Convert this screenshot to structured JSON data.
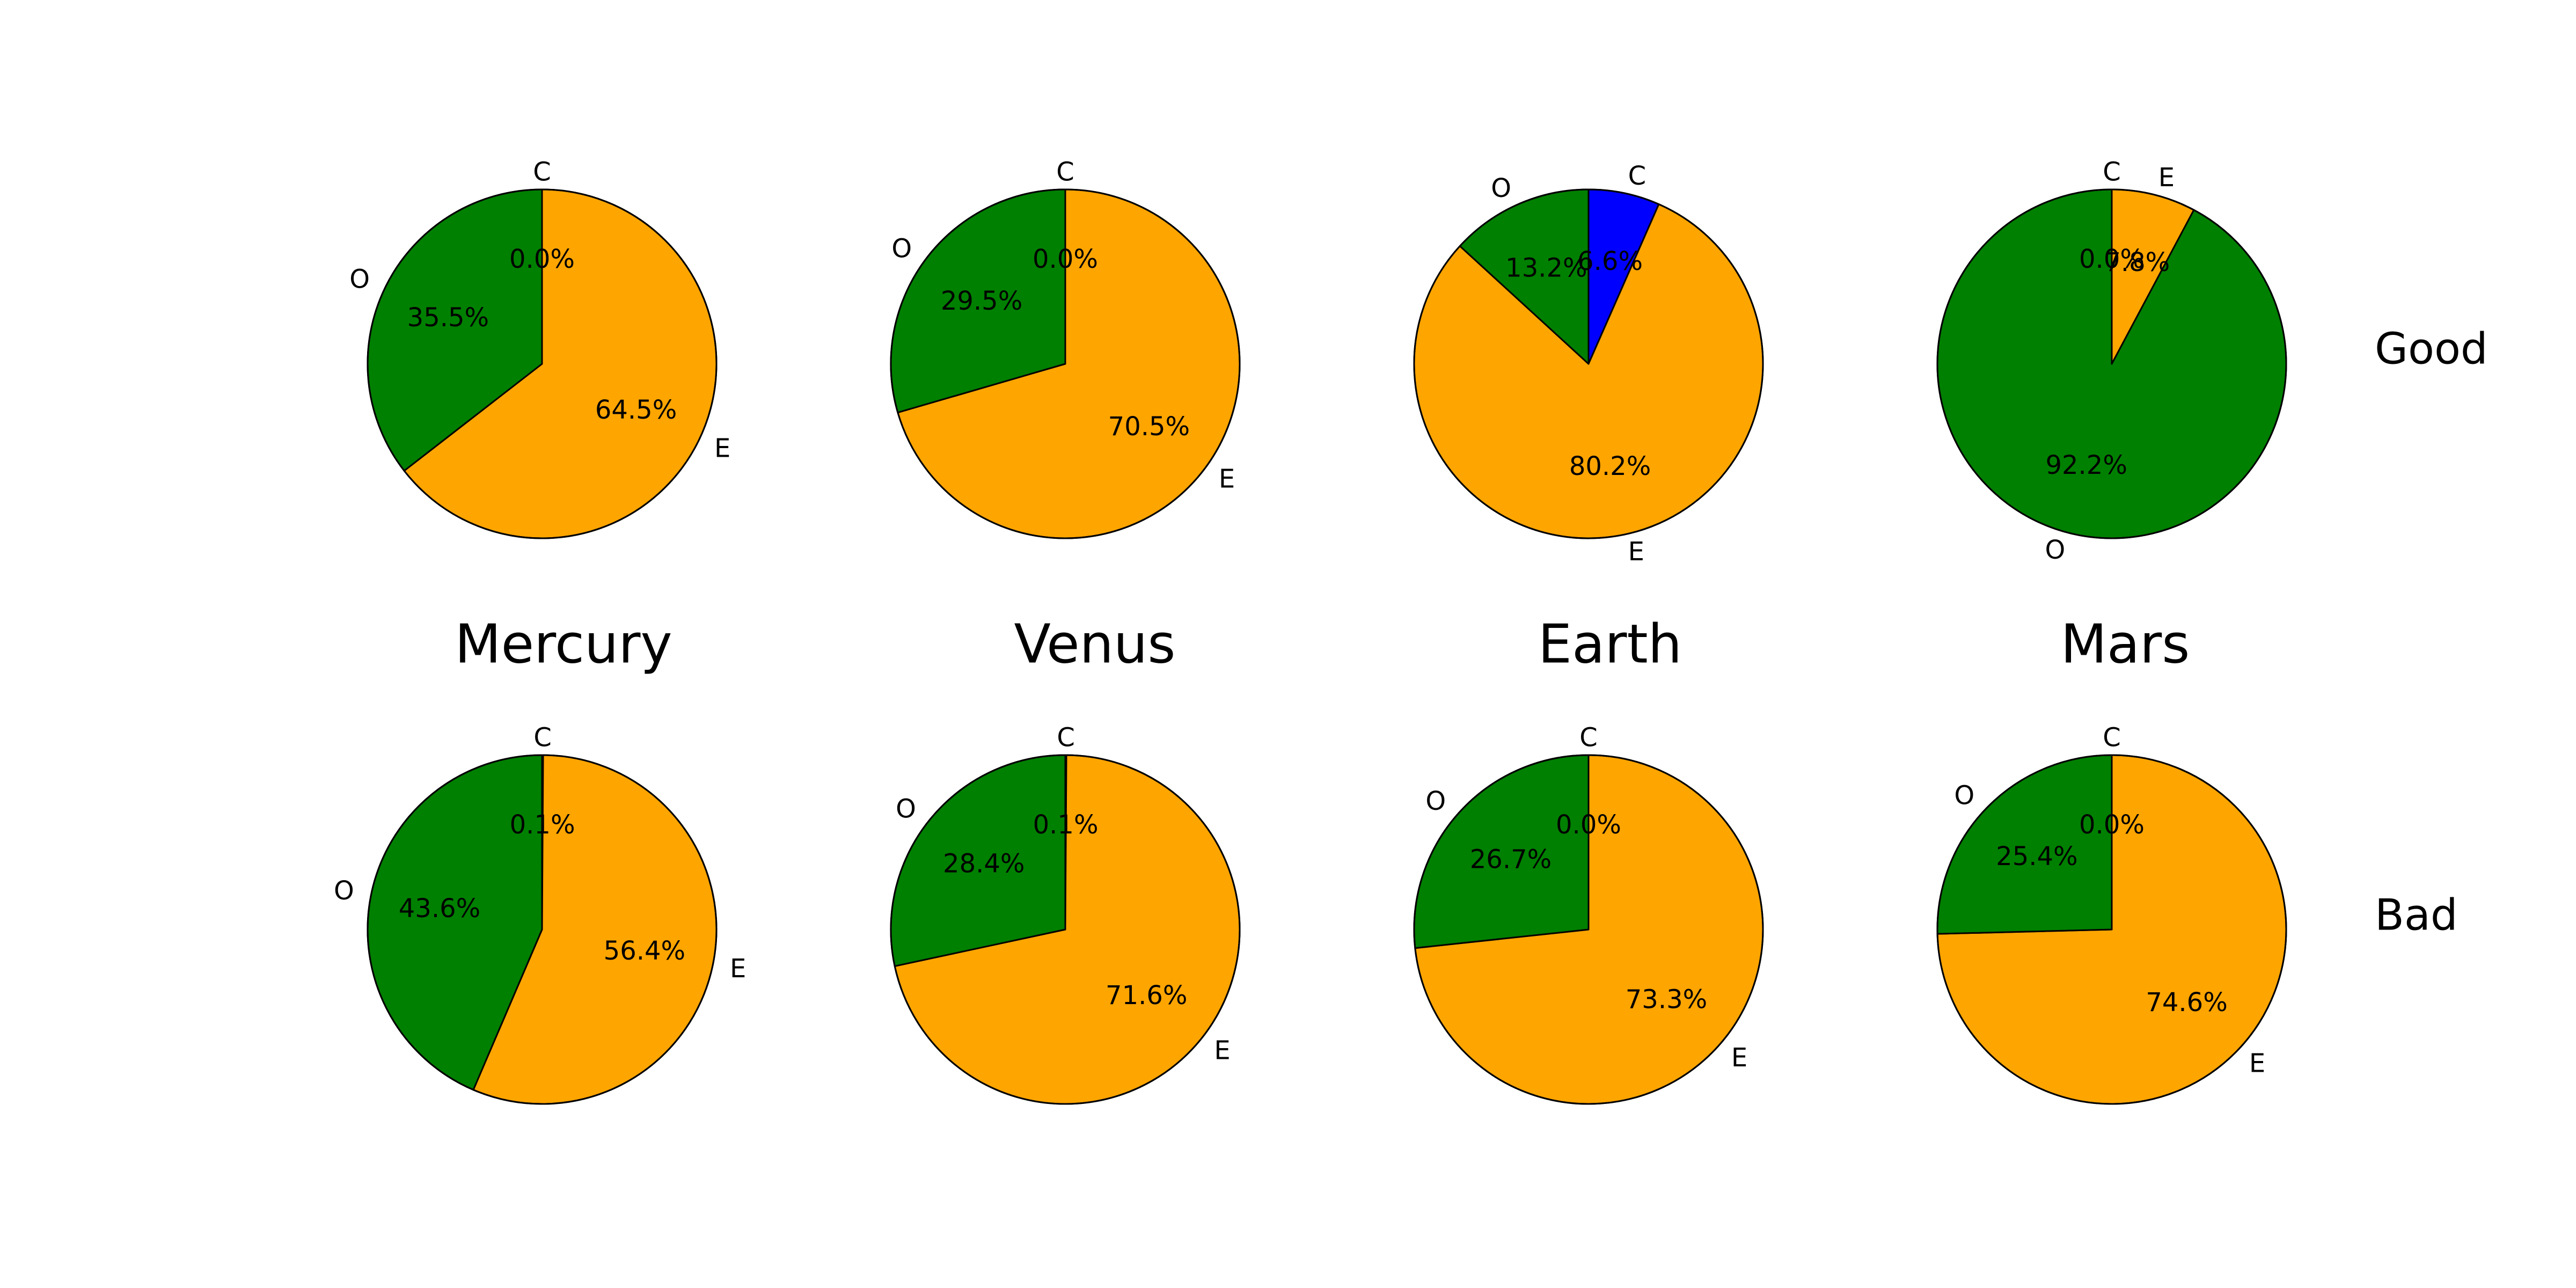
{
  "colors": {
    "C": "#0000ff",
    "E": "#ffa500",
    "O": "#008000",
    "edge": "#000000",
    "background": "#ffffff"
  },
  "chart_data": {
    "type": "pie",
    "title": "",
    "column_labels": [
      "Mercury",
      "Venus",
      "Earth",
      "Mars"
    ],
    "row_labels": [
      "Good",
      "Bad"
    ],
    "slice_order": [
      "C",
      "E",
      "O"
    ],
    "start": "12 o'clock",
    "direction": "clockwise",
    "charts": [
      {
        "planet": "Mercury",
        "row": "Good",
        "categories": [
          "C",
          "E",
          "O"
        ],
        "values": [
          0.0,
          64.5,
          35.5
        ],
        "value_labels": [
          "0.0%",
          "64.5%",
          "35.5%"
        ]
      },
      {
        "planet": "Venus",
        "row": "Good",
        "categories": [
          "C",
          "E",
          "O"
        ],
        "values": [
          0.0,
          70.5,
          29.5
        ],
        "value_labels": [
          "0.0%",
          "70.5%",
          "29.5%"
        ]
      },
      {
        "planet": "Earth",
        "row": "Good",
        "categories": [
          "C",
          "E",
          "O"
        ],
        "values": [
          6.6,
          80.2,
          13.2
        ],
        "value_labels": [
          "6.6%",
          "80.2%",
          "13.2%"
        ]
      },
      {
        "planet": "Mars",
        "row": "Good",
        "categories": [
          "C",
          "E",
          "O"
        ],
        "values": [
          0.0,
          7.8,
          92.2
        ],
        "value_labels": [
          "0.0%",
          "7.8%",
          "92.2%"
        ]
      },
      {
        "planet": "Mercury",
        "row": "Bad",
        "categories": [
          "C",
          "E",
          "O"
        ],
        "values": [
          0.1,
          56.4,
          43.6
        ],
        "value_labels": [
          "0.1%",
          "56.4%",
          "43.6%"
        ]
      },
      {
        "planet": "Venus",
        "row": "Bad",
        "categories": [
          "C",
          "E",
          "O"
        ],
        "values": [
          0.1,
          71.6,
          28.4
        ],
        "value_labels": [
          "0.1%",
          "71.6%",
          "28.4%"
        ]
      },
      {
        "planet": "Earth",
        "row": "Bad",
        "categories": [
          "C",
          "E",
          "O"
        ],
        "values": [
          0.0,
          73.3,
          26.7
        ],
        "value_labels": [
          "0.0%",
          "73.3%",
          "26.7%"
        ]
      },
      {
        "planet": "Mars",
        "row": "Bad",
        "categories": [
          "C",
          "E",
          "O"
        ],
        "values": [
          0.0,
          74.6,
          25.4
        ],
        "value_labels": [
          "0.0%",
          "74.6%",
          "25.4%"
        ]
      }
    ]
  }
}
